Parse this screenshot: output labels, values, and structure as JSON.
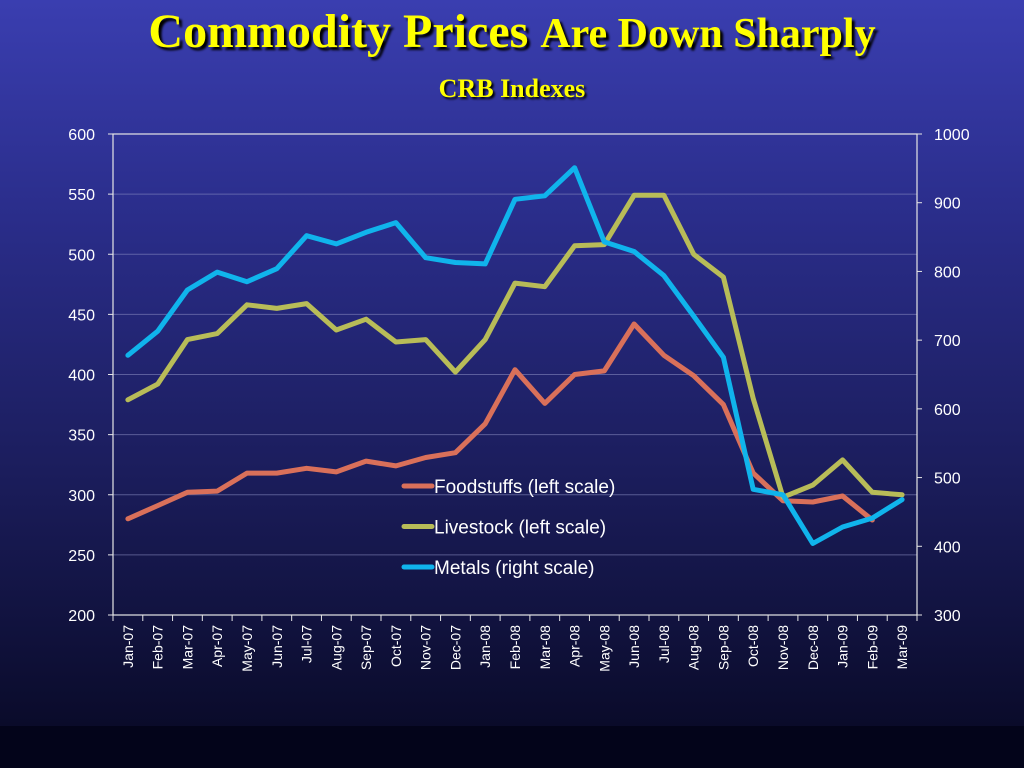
{
  "slide": {
    "title_part1": "Commodity Prices",
    "title_part2": "Are Down Sharply",
    "subtitle": "CRB Indexes"
  },
  "colors": {
    "foodstuffs": "#d9705a",
    "livestock": "#b8bc58",
    "metals": "#10b4ec",
    "plot_border": "#e6e6e6",
    "gridline": "#8c8fc4"
  },
  "chart_data": {
    "type": "line",
    "title": "",
    "xlabel": "",
    "ylabel": "",
    "categories": [
      "Jan-07",
      "Feb-07",
      "Mar-07",
      "Apr-07",
      "May-07",
      "Jun-07",
      "Jul-07",
      "Aug-07",
      "Sep-07",
      "Oct-07",
      "Nov-07",
      "Dec-07",
      "Jan-08",
      "Feb-08",
      "Mar-08",
      "Apr-08",
      "May-08",
      "Jun-08",
      "Jul-08",
      "Aug-08",
      "Sep-08",
      "Oct-08",
      "Nov-08",
      "Dec-08",
      "Jan-09",
      "Feb-09",
      "Mar-09"
    ],
    "ylim_left": [
      200,
      600
    ],
    "yticks_left": [
      "200",
      "250",
      "300",
      "350",
      "400",
      "450",
      "500",
      "550",
      "600"
    ],
    "ylim_right": [
      300,
      1000
    ],
    "yticks_right": [
      "300",
      "400",
      "500",
      "600",
      "700",
      "800",
      "900",
      "1000"
    ],
    "grid": true,
    "legend_position": "center-right",
    "series": [
      {
        "name": "Foodstuffs (left scale)",
        "axis": "left",
        "color": "#d9705a",
        "values": [
          280,
          291,
          302,
          303,
          318,
          318,
          322,
          319,
          328,
          324,
          331,
          335,
          359,
          404,
          376,
          400,
          403,
          442,
          416,
          399,
          375,
          318,
          295,
          294,
          299,
          279,
          null
        ]
      },
      {
        "name": "Livestock (left scale)",
        "axis": "left",
        "color": "#b8bc58",
        "values": [
          379,
          392,
          429,
          434,
          458,
          455,
          459,
          437,
          446,
          427,
          429,
          402,
          429,
          476,
          473,
          507,
          508,
          549,
          549,
          500,
          481,
          380,
          298,
          308,
          329,
          302,
          300
        ]
      },
      {
        "name": "Metals (right scale)",
        "axis": "right",
        "color": "#10b4ec",
        "values": [
          678,
          713,
          773,
          799,
          785,
          804,
          852,
          840,
          857,
          871,
          820,
          813,
          811,
          905,
          910,
          951,
          843,
          829,
          794,
          735,
          675,
          483,
          475,
          404,
          428,
          441,
          468
        ]
      }
    ]
  }
}
